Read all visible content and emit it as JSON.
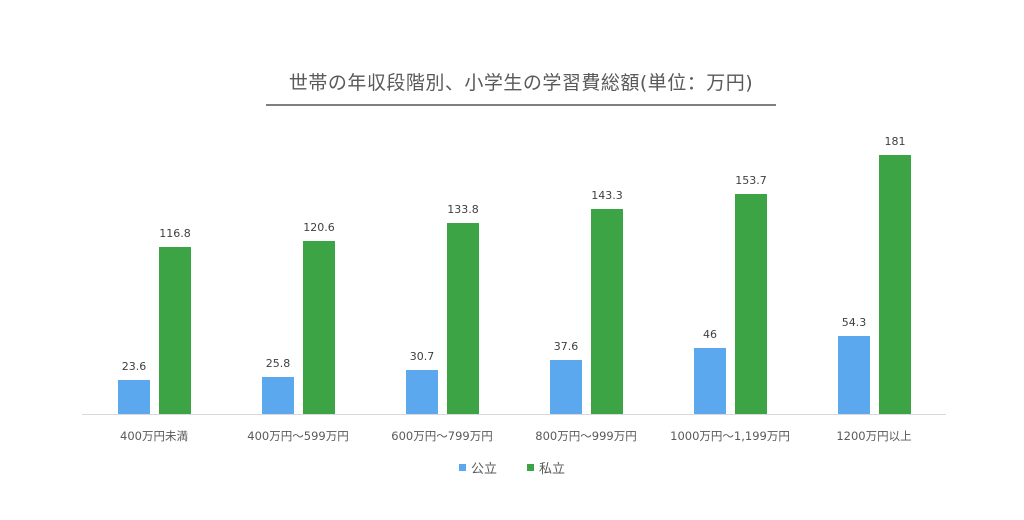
{
  "chart_data": {
    "type": "bar",
    "title": "世帯の年収段階別、小学生の学習費総額(単位：万円)",
    "categories": [
      "400万円未満",
      "400万円～599万円",
      "600万円～799万円",
      "800万円～999万円",
      "1000万円～1,199万円",
      "1200万円以上"
    ],
    "series": [
      {
        "name": "公立",
        "color": "#5ba8ee",
        "values": [
          23.6,
          25.8,
          30.7,
          37.6,
          46,
          54.3
        ]
      },
      {
        "name": "私立",
        "color": "#3da446",
        "values": [
          116.8,
          120.6,
          133.8,
          143.3,
          153.7,
          181
        ]
      }
    ],
    "data_labels": {
      "公立": [
        "23.6",
        "25.8",
        "30.7",
        "37.6",
        "46",
        "54.3"
      ],
      "私立": [
        "116.8",
        "120.6",
        "133.8",
        "143.3",
        "153.7",
        "181"
      ]
    },
    "xlabel": "",
    "ylabel": "",
    "ylim": [
      0,
      205
    ],
    "grid": false,
    "legend_position": "bottom"
  },
  "legend": {
    "public_label": "公立",
    "private_label": "私立"
  }
}
